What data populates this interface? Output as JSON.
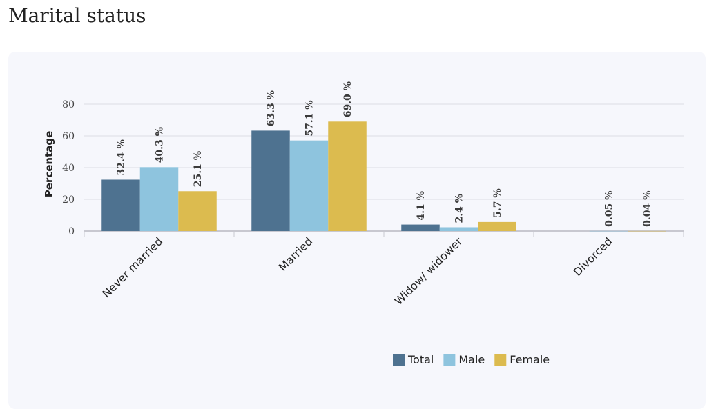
{
  "page": {
    "title": "Marital status"
  },
  "chart_data": {
    "type": "bar",
    "title": "",
    "xlabel": "",
    "ylabel": "Percentage",
    "ylim": [
      0,
      80
    ],
    "yticks": [
      0,
      20,
      40,
      60,
      80
    ],
    "grid": true,
    "legend_position": "bottom-right",
    "categories": [
      "Never married",
      "Married",
      "Widow/ widower",
      "Divorced"
    ],
    "series": [
      {
        "name": "Total",
        "color": "#4e7290",
        "values": [
          32.4,
          63.3,
          4.1,
          null
        ],
        "labels": [
          "32.4 %",
          "63.3 %",
          "4.1 %",
          ""
        ]
      },
      {
        "name": "Male",
        "color": "#8ec4de",
        "values": [
          40.3,
          57.1,
          2.4,
          0.05
        ],
        "labels": [
          "40.3 %",
          "57.1 %",
          "2.4 %",
          "0.05 %"
        ]
      },
      {
        "name": "Female",
        "color": "#dcbb4f",
        "values": [
          25.1,
          69.0,
          5.7,
          0.04
        ],
        "labels": [
          "25.1 %",
          "69.0 %",
          "5.7 %",
          "0.04 %"
        ]
      }
    ]
  }
}
